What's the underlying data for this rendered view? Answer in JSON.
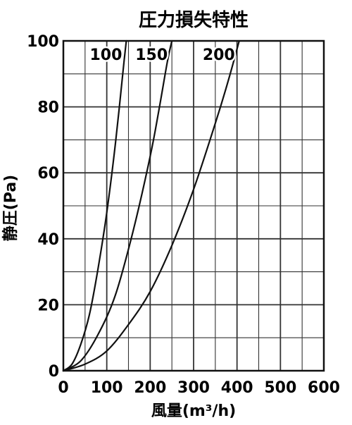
{
  "chart_data": {
    "type": "line",
    "title": "圧力損失特性",
    "xlabel": "風量(m³/h)",
    "ylabel": "静圧(Pa)",
    "xlim": [
      0,
      600
    ],
    "ylim": [
      0,
      100
    ],
    "xticks": [
      "0",
      "100",
      "200",
      "300",
      "400",
      "500",
      "600"
    ],
    "yticks": [
      "0",
      "20",
      "40",
      "60",
      "80",
      "100"
    ],
    "grid": true,
    "series": [
      {
        "name": "100",
        "x": [
          0,
          20,
          40,
          60,
          80,
          100,
          120,
          140,
          145
        ],
        "y": [
          0,
          2,
          8,
          17,
          31,
          48,
          69,
          94,
          100
        ]
      },
      {
        "name": "150",
        "x": [
          0,
          40,
          80,
          120,
          160,
          200,
          220,
          240,
          250
        ],
        "y": [
          0,
          3,
          11,
          23,
          42,
          65,
          79,
          94,
          100
        ]
      },
      {
        "name": "200",
        "x": [
          0,
          50,
          100,
          150,
          200,
          250,
          300,
          350,
          380,
          405
        ],
        "y": [
          0,
          2,
          6,
          14,
          24,
          38,
          55,
          75,
          88,
          100
        ]
      }
    ]
  }
}
